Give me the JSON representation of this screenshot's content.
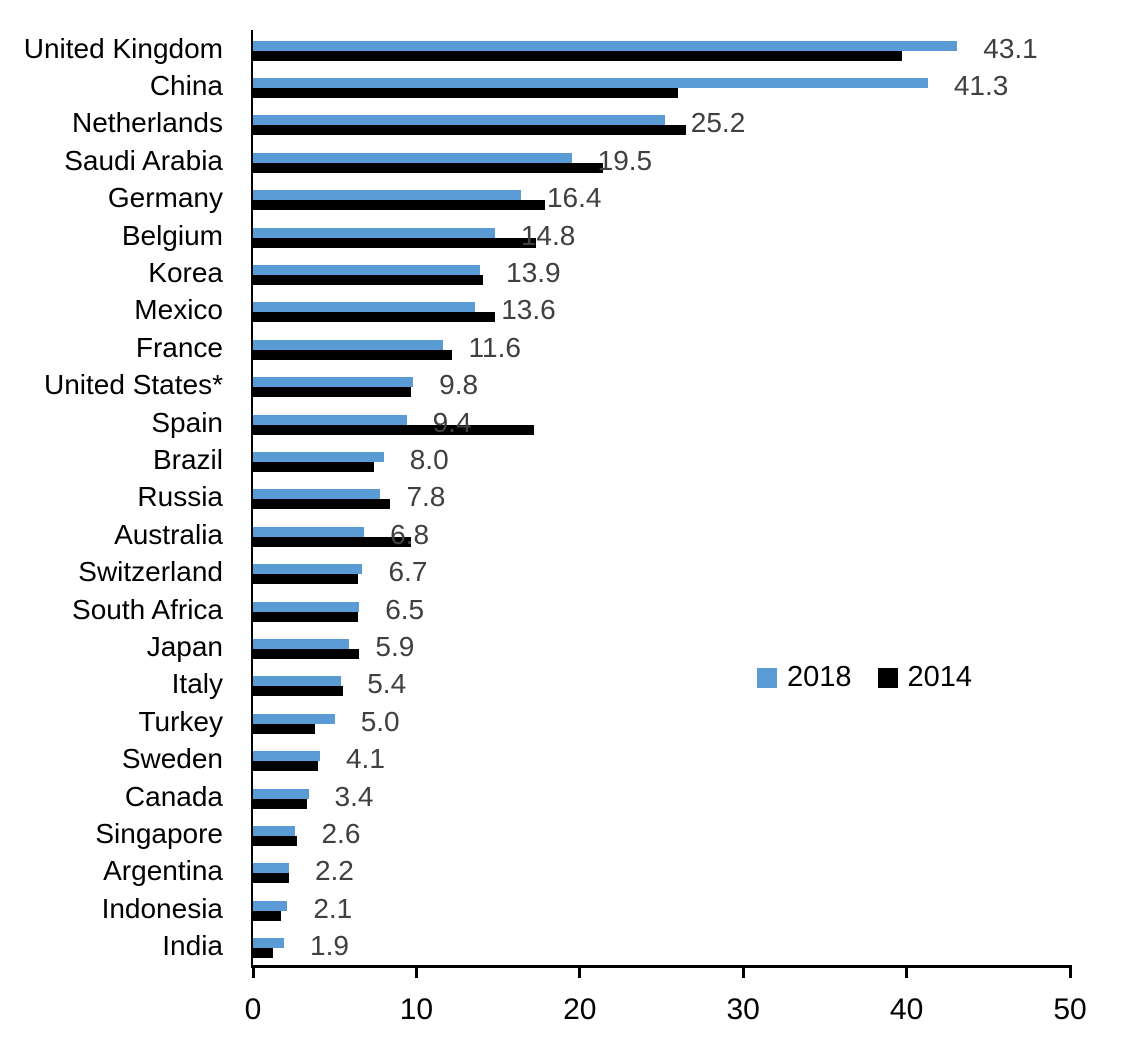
{
  "chart_data": {
    "type": "bar",
    "orientation": "horizontal",
    "title": "",
    "categories": [
      "United Kingdom",
      "China",
      "Netherlands",
      "Saudi Arabia",
      "Germany",
      "Belgium",
      "Korea",
      "Mexico",
      "France",
      "United States*",
      "Spain",
      "Brazil",
      "Russia",
      "Australia",
      "Switzerland",
      "South Africa",
      "Japan",
      "Italy",
      "Turkey",
      "Sweden",
      "Canada",
      "Singapore",
      "Argentina",
      "Indonesia",
      "India"
    ],
    "series": [
      {
        "name": "2018",
        "color": "#5B9BD5",
        "values": [
          43.1,
          41.3,
          25.2,
          19.5,
          16.4,
          14.8,
          13.9,
          13.6,
          11.6,
          9.8,
          9.4,
          8.0,
          7.8,
          6.8,
          6.7,
          6.5,
          5.9,
          5.4,
          5.0,
          4.1,
          3.4,
          2.6,
          2.2,
          2.1,
          1.9
        ],
        "data_labels": [
          "43.1",
          "41.3",
          "25.2",
          "19.5",
          "16.4",
          "14.8",
          "13.9",
          "13.6",
          "11.6",
          "9.8",
          "9.4",
          "8.0",
          "7.8",
          "6.8",
          "6.7",
          "6.5",
          "5.9",
          "5.4",
          "5.0",
          "4.1",
          "3.4",
          "2.6",
          "2.2",
          "2.1",
          "1.9"
        ]
      },
      {
        "name": "2014",
        "color": "#000000",
        "values": [
          39.7,
          26.0,
          26.5,
          21.4,
          17.9,
          17.3,
          14.1,
          14.8,
          12.2,
          9.7,
          17.2,
          7.4,
          8.4,
          9.7,
          6.4,
          6.4,
          6.5,
          5.5,
          3.8,
          4.0,
          3.3,
          2.7,
          2.2,
          1.7,
          1.2
        ],
        "data_labels": null
      }
    ],
    "xlim": [
      0,
      50
    ],
    "x_ticks": [
      "0",
      "10",
      "20",
      "30",
      "40",
      "50"
    ],
    "grid": false,
    "legend_position": "center-right",
    "value_label_color": "#404040",
    "axis_color": "#000000"
  }
}
